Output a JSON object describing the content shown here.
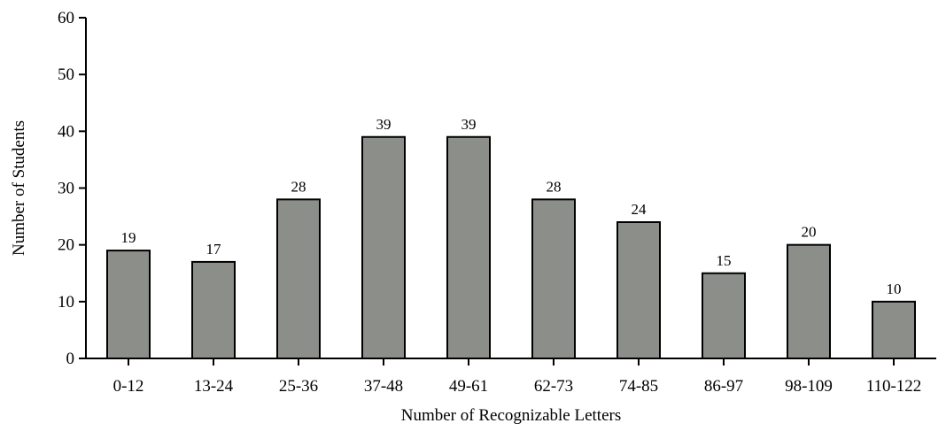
{
  "chart_data": {
    "type": "bar",
    "title": "",
    "xlabel": "Number of Recognizable Letters",
    "ylabel": "Number of Students",
    "categories": [
      "0-12",
      "13-24",
      "25-36",
      "37-48",
      "49-61",
      "62-73",
      "74-85",
      "86-97",
      "98-109",
      "110-122"
    ],
    "values": [
      19,
      17,
      28,
      39,
      39,
      28,
      24,
      15,
      20,
      10
    ],
    "data_labels": [
      "19",
      "17",
      "28",
      "39",
      "39",
      "28",
      "24",
      "15",
      "20",
      "10"
    ],
    "ylim": [
      0,
      60
    ],
    "yticks": [
      0,
      10,
      20,
      30,
      40,
      50,
      60
    ],
    "grid": false,
    "legend": "none",
    "bar_color": "#8c8e8a",
    "bar_edge_color": "#000000"
  }
}
